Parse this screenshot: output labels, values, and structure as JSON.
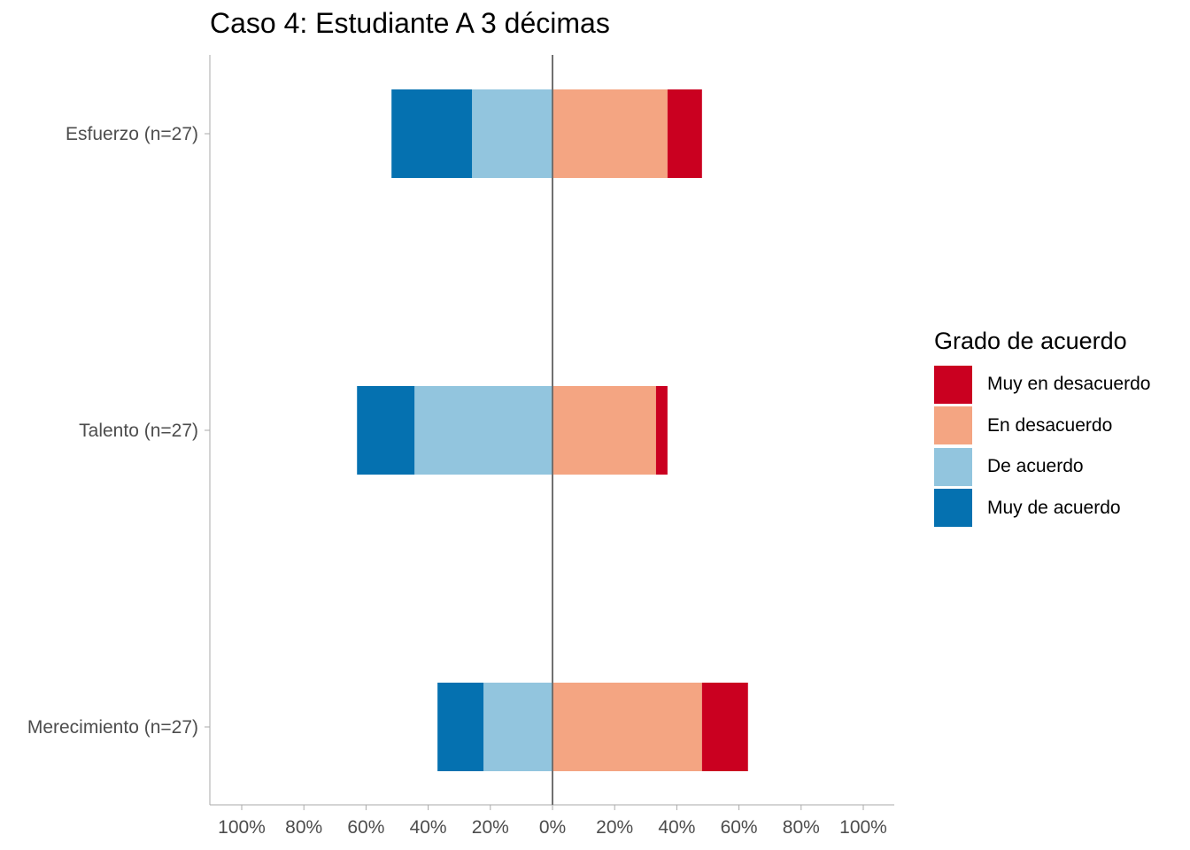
{
  "title": "Caso 4: Estudiante A 3 décimas",
  "chart_data": {
    "type": "bar",
    "orientation": "horizontal-diverging",
    "title": "Caso 4: Estudiante A 3 décimas",
    "categories": [
      "Esfuerzo (n=27)",
      "Talento (n=27)",
      "Merecimiento (n=27)"
    ],
    "series": [
      {
        "name": "Muy de acuerdo",
        "side": "left",
        "color": "#0571b0",
        "values": [
          25.9,
          18.5,
          14.8
        ]
      },
      {
        "name": "De acuerdo",
        "side": "left",
        "color": "#92c5de",
        "values": [
          25.9,
          44.4,
          22.2
        ]
      },
      {
        "name": "En desacuerdo",
        "side": "right",
        "color": "#f4a582",
        "values": [
          37.0,
          33.3,
          48.1
        ]
      },
      {
        "name": "Muy en desacuerdo",
        "side": "right",
        "color": "#ca0020",
        "values": [
          11.1,
          3.7,
          14.8
        ]
      }
    ],
    "x_ticks": [
      "100%",
      "80%",
      "60%",
      "40%",
      "20%",
      "0%",
      "20%",
      "40%",
      "60%",
      "80%",
      "100%"
    ],
    "xlim": [
      -110,
      110
    ],
    "grid": false,
    "legend": {
      "title": "Grado de acuerdo",
      "position": "right",
      "entries": [
        {
          "label": "Muy en desacuerdo",
          "color": "#ca0020"
        },
        {
          "label": "En desacuerdo",
          "color": "#f4a582"
        },
        {
          "label": "De acuerdo",
          "color": "#92c5de"
        },
        {
          "label": "Muy de acuerdo",
          "color": "#0571b0"
        }
      ]
    }
  }
}
